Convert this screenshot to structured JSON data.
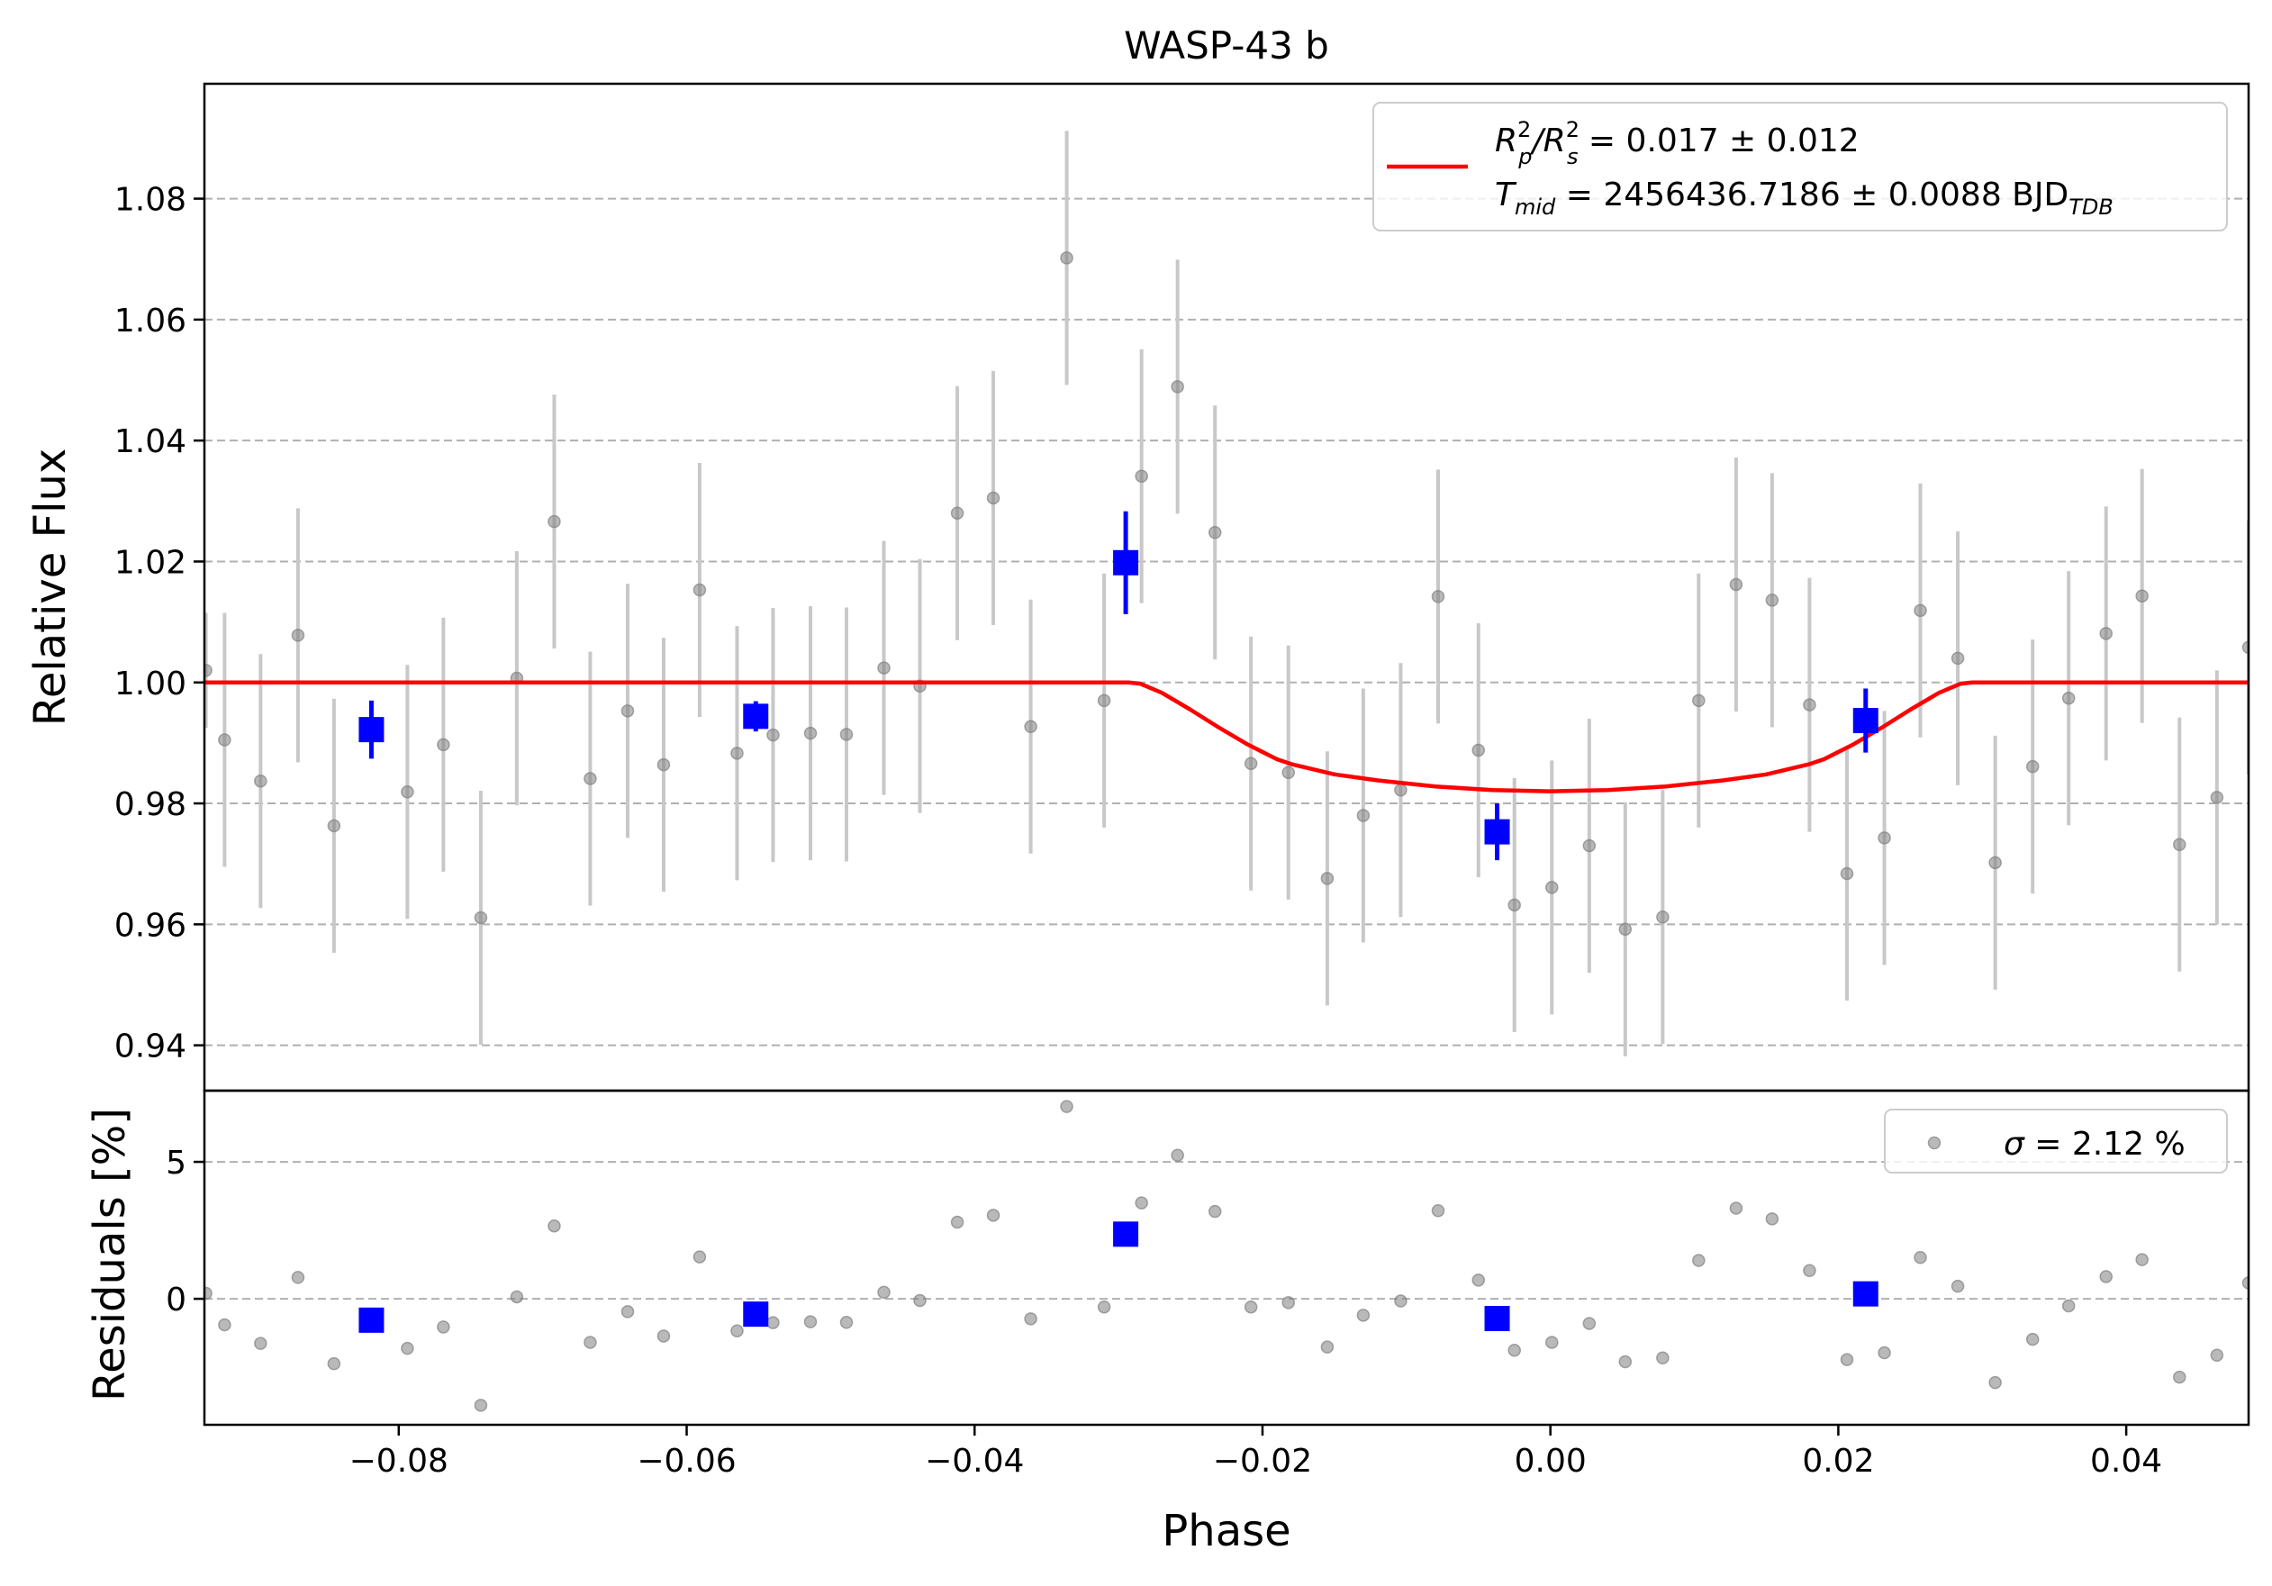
{
  "chart_data": {
    "type": "scatter",
    "title": "WASP-43 b",
    "xlabel": "Phase",
    "main_panel": {
      "ylabel": "Relative Flux",
      "xlim": [
        -0.0935,
        0.0485
      ],
      "ylim": [
        0.9325,
        1.099
      ],
      "xticks": [
        -0.08,
        -0.06,
        -0.04,
        -0.02,
        0.0,
        0.02,
        0.04
      ],
      "xtick_labels": [
        "−0.08",
        "−0.06",
        "−0.04",
        "−0.02",
        "0.00",
        "0.02",
        "0.04"
      ],
      "yticks": [
        0.94,
        0.96,
        0.98,
        1.0,
        1.02,
        1.04,
        1.06,
        1.08
      ],
      "ytick_labels": [
        "0.94",
        "0.96",
        "0.98",
        "1.00",
        "1.02",
        "1.04",
        "1.06",
        "1.08"
      ],
      "grid": "horizontal dashed",
      "legend_position": "upper right",
      "legend": {
        "line1_main": "R",
        "line1_sup1": "2",
        "line1_sub1": "p",
        "line1_sep": "/R",
        "line1_sup2": "2",
        "line1_sub2": "s",
        "line1_rest": " = 0.017 ± 0.012",
        "line2_main": "T",
        "line2_sub": "mid",
        "line2_rest": " = 2456436.7186 ± 0.0088 BJD",
        "line2_unit_sub": "TDB"
      },
      "series": [
        {
          "kind": "unbinned",
          "color": "#808080",
          "errorbar_color": "#c8c8c8",
          "points": [
            [
              -0.0934,
              1.002,
              0.0095
            ],
            [
              -0.0921,
              0.9905,
              0.021
            ],
            [
              -0.0896,
              0.9837,
              0.021
            ],
            [
              -0.087,
              1.0078,
              0.021
            ],
            [
              -0.0845,
              0.9763,
              0.021
            ],
            [
              -0.0794,
              0.9819,
              0.021
            ],
            [
              -0.0769,
              0.9897,
              0.021
            ],
            [
              -0.0743,
              0.9611,
              0.021
            ],
            [
              -0.0718,
              1.0007,
              0.021
            ],
            [
              -0.0692,
              1.0266,
              0.021
            ],
            [
              -0.0667,
              0.9841,
              0.021
            ],
            [
              -0.0641,
              0.9953,
              0.021
            ],
            [
              -0.0616,
              0.9864,
              0.021
            ],
            [
              -0.0591,
              1.0153,
              0.021
            ],
            [
              -0.0565,
              0.9883,
              0.021
            ],
            [
              -0.054,
              0.9913,
              0.021
            ],
            [
              -0.0514,
              0.9916,
              0.021
            ],
            [
              -0.0489,
              0.9914,
              0.021
            ],
            [
              -0.0463,
              1.0024,
              0.021
            ],
            [
              -0.0438,
              0.9994,
              0.021
            ],
            [
              -0.0412,
              1.028,
              0.021
            ],
            [
              -0.0387,
              1.0305,
              0.021
            ],
            [
              -0.0361,
              0.9927,
              0.021
            ],
            [
              -0.0336,
              1.0702,
              0.021
            ],
            [
              -0.031,
              0.997,
              0.021
            ],
            [
              -0.0284,
              1.0341,
              0.021
            ],
            [
              -0.0259,
              1.0489,
              0.021
            ],
            [
              -0.0233,
              1.0248,
              0.021
            ],
            [
              -0.0208,
              0.9866,
              0.021
            ],
            [
              -0.0182,
              0.9851,
              0.021
            ],
            [
              -0.0155,
              0.9676,
              0.021
            ],
            [
              -0.013,
              0.978,
              0.021
            ],
            [
              -0.0104,
              0.9822,
              0.021
            ],
            [
              -0.0078,
              1.0142,
              0.021
            ],
            [
              -0.005,
              0.9888,
              0.021
            ],
            [
              -0.0025,
              0.9632,
              0.021
            ],
            [
              0.0001,
              0.9661,
              0.021
            ],
            [
              0.0027,
              0.973,
              0.021
            ],
            [
              0.0052,
              0.9592,
              0.021
            ],
            [
              0.0078,
              0.9612,
              0.021
            ],
            [
              0.0103,
              0.997,
              0.021
            ],
            [
              0.0129,
              1.0162,
              0.021
            ],
            [
              0.0154,
              1.0136,
              0.021
            ],
            [
              0.018,
              0.9963,
              0.021
            ],
            [
              0.0206,
              0.9684,
              0.021
            ],
            [
              0.0232,
              0.9743,
              0.021
            ],
            [
              0.0257,
              1.0119,
              0.021
            ],
            [
              0.0283,
              1.004,
              0.021
            ],
            [
              0.0309,
              0.9702,
              0.021
            ],
            [
              0.0335,
              0.9861,
              0.021
            ],
            [
              0.036,
              0.9974,
              0.021
            ],
            [
              0.0386,
              1.0081,
              0.021
            ],
            [
              0.0411,
              1.0143,
              0.021
            ],
            [
              0.0437,
              0.9732,
              0.021
            ],
            [
              0.0463,
              0.981,
              0.021
            ],
            [
              0.0485,
              1.0058,
              0.021
            ]
          ]
        },
        {
          "kind": "binned",
          "color": "#0000ff",
          "points": [
            [
              -0.0819,
              0.9922,
              0.0048
            ],
            [
              -0.0552,
              0.9944,
              0.0025
            ],
            [
              -0.0295,
              1.0198,
              0.0085
            ],
            [
              -0.0037,
              0.9753,
              0.0047
            ],
            [
              0.0219,
              0.9937,
              0.0053
            ]
          ]
        },
        {
          "kind": "model",
          "color": "#ff0000",
          "x": [
            -0.0935,
            -0.0293,
            -0.0285,
            -0.027,
            -0.025,
            -0.023,
            -0.021,
            -0.019,
            -0.018,
            -0.015,
            -0.012,
            -0.008,
            -0.004,
            0.0,
            0.004,
            0.008,
            0.012,
            0.015,
            0.018,
            0.019,
            0.021,
            0.023,
            0.025,
            0.027,
            0.0285,
            0.0293,
            0.0485
          ],
          "y": [
            1.0,
            1.0,
            0.9998,
            0.9983,
            0.9955,
            0.9925,
            0.9897,
            0.9873,
            0.9865,
            0.9848,
            0.9838,
            0.9828,
            0.9822,
            0.982,
            0.9822,
            0.9828,
            0.9838,
            0.9848,
            0.9865,
            0.9873,
            0.9897,
            0.9925,
            0.9955,
            0.9983,
            0.9998,
            1.0,
            1.0
          ]
        }
      ]
    },
    "residual_panel": {
      "ylabel": "Residuals [%]",
      "xlim": [
        -0.0935,
        0.0485
      ],
      "ylim": [
        -4.6,
        7.6
      ],
      "yticks": [
        0,
        5
      ],
      "ytick_labels": [
        "0",
        "5"
      ],
      "grid": "horizontal dashed",
      "legend_position": "upper right",
      "legend": {
        "sigma_symbol": "σ",
        "text": " = 2.12 %"
      },
      "series": [
        {
          "kind": "unbinned",
          "color": "#808080",
          "points": [
            [
              -0.0934,
              0.2
            ],
            [
              -0.0921,
              -0.95
            ],
            [
              -0.0896,
              -1.63
            ],
            [
              -0.087,
              0.78
            ],
            [
              -0.0845,
              -2.37
            ],
            [
              -0.0794,
              -1.81
            ],
            [
              -0.0769,
              -1.03
            ],
            [
              -0.0743,
              -3.89
            ],
            [
              -0.0718,
              0.07
            ],
            [
              -0.0692,
              2.66
            ],
            [
              -0.0667,
              -1.59
            ],
            [
              -0.0641,
              -0.47
            ],
            [
              -0.0616,
              -1.36
            ],
            [
              -0.0591,
              1.53
            ],
            [
              -0.0565,
              -1.17
            ],
            [
              -0.054,
              -0.87
            ],
            [
              -0.0514,
              -0.84
            ],
            [
              -0.0489,
              -0.86
            ],
            [
              -0.0463,
              0.24
            ],
            [
              -0.0438,
              -0.06
            ],
            [
              -0.0412,
              2.8
            ],
            [
              -0.0387,
              3.05
            ],
            [
              -0.0361,
              -0.73
            ],
            [
              -0.0336,
              7.02
            ],
            [
              -0.031,
              -0.3
            ],
            [
              -0.0284,
              3.5
            ],
            [
              -0.0259,
              5.24
            ],
            [
              -0.0233,
              3.19
            ],
            [
              -0.0208,
              -0.3
            ],
            [
              -0.0182,
              -0.14
            ],
            [
              -0.0155,
              -1.76
            ],
            [
              -0.013,
              -0.6
            ],
            [
              -0.0104,
              -0.08
            ],
            [
              -0.0078,
              3.22
            ],
            [
              -0.005,
              0.68
            ],
            [
              -0.0025,
              -1.88
            ],
            [
              0.0001,
              -1.59
            ],
            [
              0.0027,
              -0.9
            ],
            [
              0.0052,
              -2.3
            ],
            [
              0.0078,
              -2.16
            ],
            [
              0.0103,
              1.4
            ],
            [
              0.0129,
              3.31
            ],
            [
              0.0154,
              2.92
            ],
            [
              0.018,
              1.03
            ],
            [
              0.0206,
              -2.22
            ],
            [
              0.0232,
              -1.97
            ],
            [
              0.0257,
              1.51
            ],
            [
              0.0283,
              0.46
            ],
            [
              0.0309,
              -3.06
            ],
            [
              0.0335,
              -1.48
            ],
            [
              0.036,
              -0.26
            ],
            [
              0.0386,
              0.81
            ],
            [
              0.0411,
              1.43
            ],
            [
              0.0437,
              -2.86
            ],
            [
              0.0463,
              -2.06
            ],
            [
              0.0485,
              0.58
            ]
          ]
        },
        {
          "kind": "binned",
          "color": "#0000ff",
          "points": [
            [
              -0.0819,
              -0.78
            ],
            [
              -0.0552,
              -0.56
            ],
            [
              -0.0295,
              2.36
            ],
            [
              -0.0037,
              -0.72
            ],
            [
              0.0219,
              0.18
            ]
          ]
        }
      ]
    }
  }
}
